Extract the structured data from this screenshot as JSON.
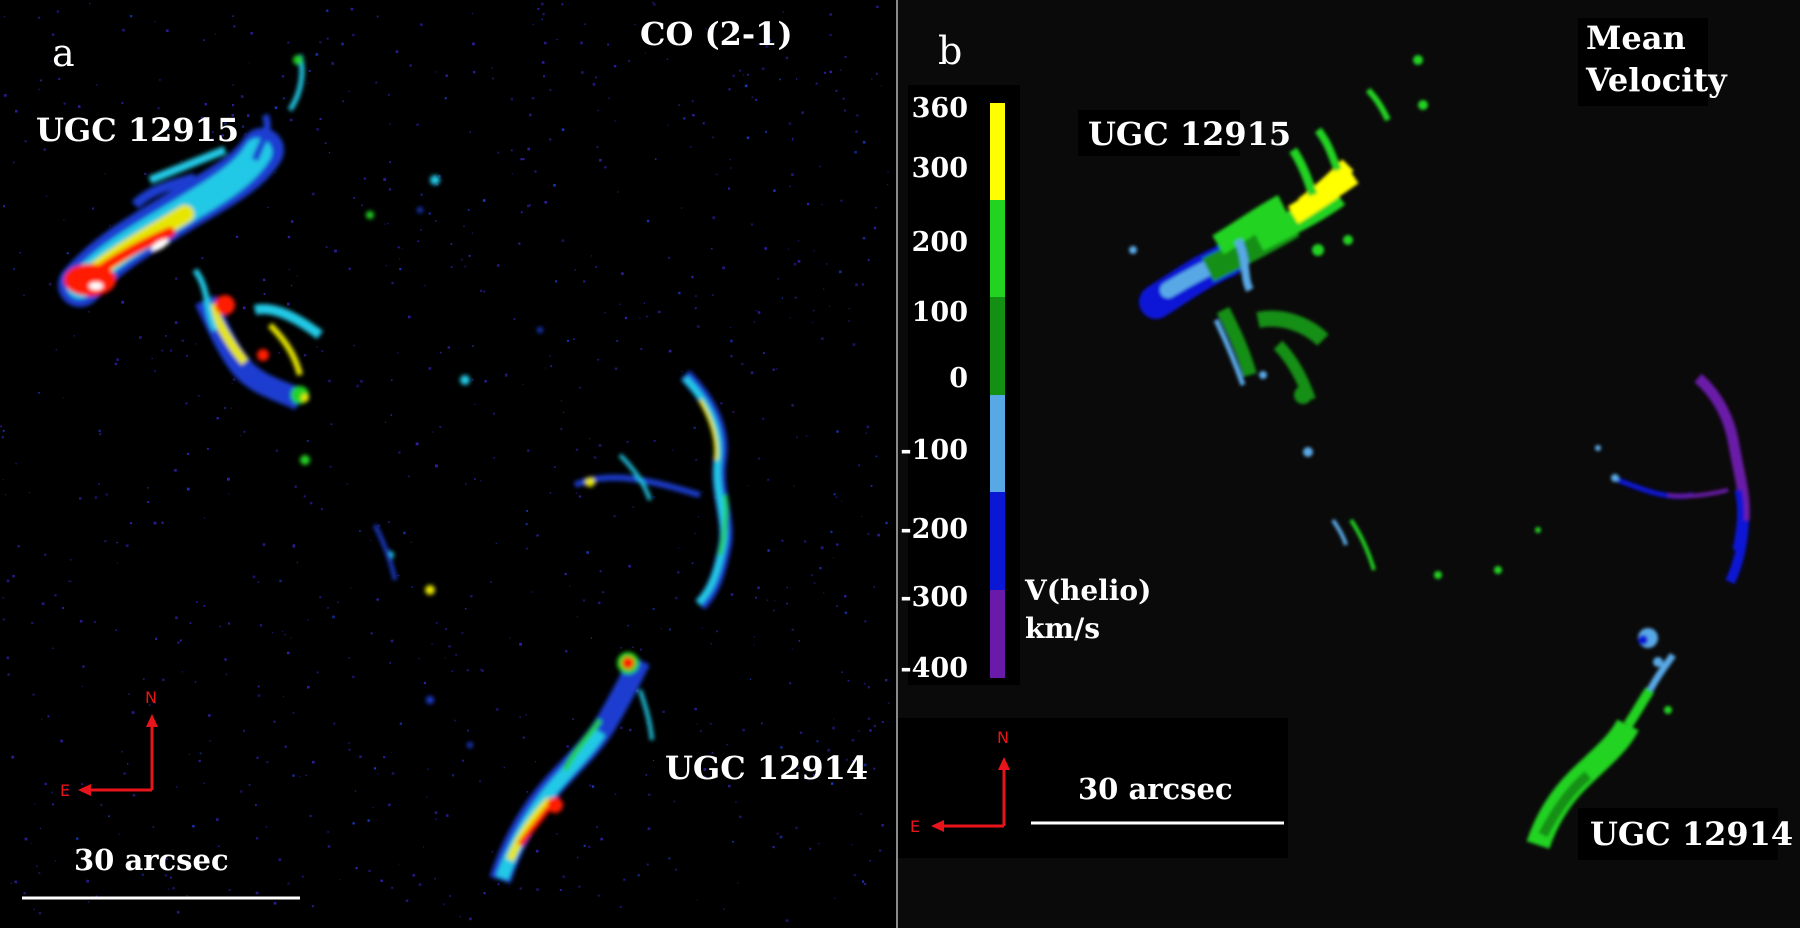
{
  "panel_a": {
    "letter": "a",
    "tracer": "CO (2-1)",
    "galaxy_north": "UGC 12915",
    "galaxy_south": "UGC 12914",
    "scale_bar": "30 arcsec",
    "compass": {
      "north": "N",
      "east": "E"
    }
  },
  "panel_b": {
    "letter": "b",
    "title_line1": "Mean",
    "title_line2": "Velocity",
    "galaxy_north": "UGC 12915",
    "galaxy_south": "UGC 12914",
    "scale_bar": "30 arcsec",
    "compass": {
      "north": "N",
      "east": "E"
    },
    "colorbar": {
      "ticks": [
        "360",
        "300",
        "200",
        "100",
        "0",
        "-100",
        "-200",
        "-300",
        "-400"
      ],
      "unit_line1": "V(helio)",
      "unit_line2": "km/s",
      "colors": [
        "#ffff00",
        "#22d322",
        "#138f13",
        "#59a8e6",
        "#0a18d6",
        "#6a1aa8"
      ]
    }
  },
  "colors": {
    "intensity_low": "#3a1aa8",
    "intensity_mid": "#22c9e6",
    "intensity_high": "#ff1a00",
    "compass": "#e8141b",
    "divider": "#8a8a8a"
  }
}
